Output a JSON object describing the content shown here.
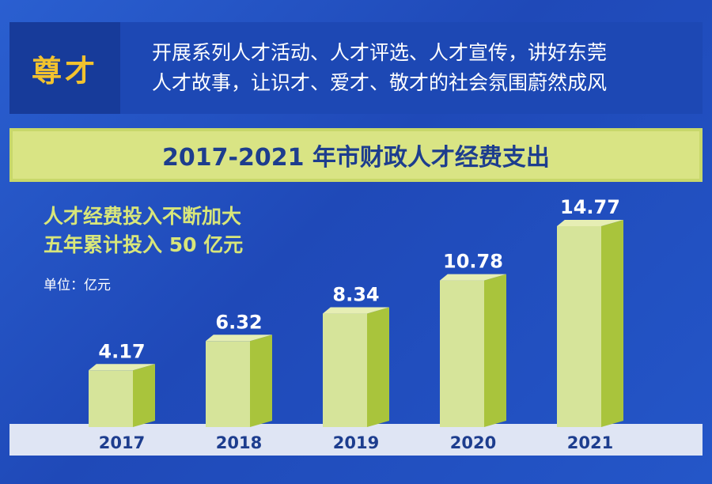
{
  "header": {
    "tag": "尊才",
    "line1": "开展系列人才活动、人才评选、人才宣传，讲好东莞",
    "line2": "人才故事，让识才、爱才、敬才的社会氛围蔚然成风"
  },
  "subtitle": {
    "line1": "人才经费投入不断加大",
    "line2": "五年累计投入 50 亿元"
  },
  "unit_label": "单位：亿元",
  "colors": {
    "background": "#2456c8",
    "title_bar": "#d9e484",
    "bar_front": "#d6e49a",
    "bar_side": "#a9c43c",
    "bar_top": "#e6eeb4",
    "baseline": "#dfe5f4",
    "value_text": "#ffffff",
    "year_text": "#1d3d8e",
    "accent_yellow": "#f2c22e"
  },
  "chart_data": {
    "type": "bar",
    "title": "2017-2021 年市财政人才经费支出",
    "categories": [
      "2017",
      "2018",
      "2019",
      "2020",
      "2021"
    ],
    "values": [
      4.17,
      6.32,
      8.34,
      10.78,
      14.77
    ],
    "value_labels": [
      "4.17",
      "6.32",
      "8.34",
      "10.78",
      "14.77"
    ],
    "ylabel": "",
    "xlabel": "",
    "ylim": [
      0,
      15
    ],
    "grid": false,
    "legend": "none"
  }
}
